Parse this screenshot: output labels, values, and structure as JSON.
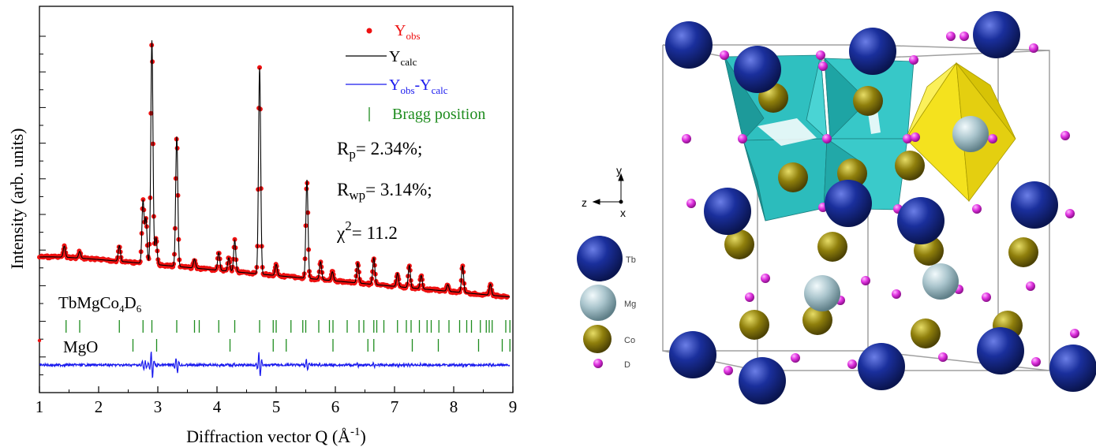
{
  "chart_data": {
    "type": "line",
    "title": "",
    "xlabel": "Diffraction vector Q (Å",
    "xlabel_sup": "-1",
    "xlabel_close": ")",
    "ylabel": "Intensity (arb. units)",
    "xlim": [
      1,
      9
    ],
    "x_ticks": [
      "1",
      "2",
      "3",
      "4",
      "5",
      "6",
      "7",
      "8",
      "9"
    ],
    "y_ticks": "unlabeled",
    "legend": [
      {
        "name": "Y",
        "sub": "obs",
        "color": "#ee1111",
        "kind": "marker"
      },
      {
        "name": "Y",
        "sub": "calc",
        "color": "#000000",
        "kind": "line"
      },
      {
        "name": "Y",
        "sub": "obs",
        "name2": "-Y",
        "sub2": "calc",
        "color": "#1a1aee",
        "kind": "line"
      },
      {
        "name": "Bragg position",
        "color": "#1e8c1e",
        "kind": "tick"
      }
    ],
    "annotations": {
      "rp_main": "R",
      "rp_sub": "p",
      "rp_value": "= 2.34%;",
      "rwp_main": "R",
      "rwp_sub": "wp",
      "rwp_value": "= 3.14%;",
      "chi_main": "χ",
      "chi_sup": "2",
      "chi_value": "= 11.2"
    },
    "phases": [
      {
        "label": "TbMgCo",
        "sub": "4",
        "label2": "D",
        "sub2": "6",
        "bragg": [
          1.45,
          1.68,
          2.35,
          2.75,
          2.9,
          3.32,
          3.62,
          3.7,
          4.03,
          4.3,
          4.72,
          4.95,
          5.0,
          5.25,
          5.45,
          5.5,
          5.72,
          5.9,
          5.96,
          6.2,
          6.4,
          6.48,
          6.65,
          6.7,
          6.82,
          7.05,
          7.2,
          7.28,
          7.42,
          7.55,
          7.62,
          7.75,
          7.92,
          8.1,
          8.22,
          8.3,
          8.45,
          8.55,
          8.6,
          8.65,
          8.88,
          8.95
        ]
      },
      {
        "label": "MgO",
        "bragg": [
          2.58,
          2.98,
          4.22,
          4.95,
          5.17,
          5.96,
          6.55,
          6.65,
          7.3,
          7.74,
          8.42,
          8.82,
          8.95
        ]
      }
    ],
    "peaks": [
      {
        "q": 1.42,
        "h": 0.05
      },
      {
        "q": 1.68,
        "h": 0.03
      },
      {
        "q": 2.35,
        "h": 0.07
      },
      {
        "q": 2.75,
        "h": 0.28
      },
      {
        "q": 2.8,
        "h": 0.2
      },
      {
        "q": 2.9,
        "h": 1.0
      },
      {
        "q": 2.97,
        "h": 0.12
      },
      {
        "q": 3.32,
        "h": 0.58
      },
      {
        "q": 3.62,
        "h": 0.04
      },
      {
        "q": 4.03,
        "h": 0.08
      },
      {
        "q": 4.2,
        "h": 0.06
      },
      {
        "q": 4.3,
        "h": 0.14
      },
      {
        "q": 4.72,
        "h": 0.92
      },
      {
        "q": 5.0,
        "h": 0.05
      },
      {
        "q": 5.52,
        "h": 0.44
      },
      {
        "q": 5.75,
        "h": 0.08
      },
      {
        "q": 5.95,
        "h": 0.04
      },
      {
        "q": 6.38,
        "h": 0.09
      },
      {
        "q": 6.65,
        "h": 0.12
      },
      {
        "q": 7.05,
        "h": 0.06
      },
      {
        "q": 7.25,
        "h": 0.1
      },
      {
        "q": 7.45,
        "h": 0.06
      },
      {
        "q": 7.9,
        "h": 0.03
      },
      {
        "q": 8.15,
        "h": 0.12
      },
      {
        "q": 8.62,
        "h": 0.05
      }
    ]
  },
  "structure": {
    "axes": {
      "y": "y",
      "z": "z",
      "x": "x"
    },
    "legend": [
      {
        "label": "Tb",
        "color": "#142a8c"
      },
      {
        "label": "Mg",
        "color": "#a8c4cc"
      },
      {
        "label": "Co",
        "color": "#8a7a08"
      },
      {
        "label": "D",
        "color": "#e030e0"
      }
    ],
    "colors": {
      "octahedron_cyan": "#2ec4c4",
      "octahedron_yellow": "#f2e01c",
      "cell_edge": "#a0a0a0"
    }
  }
}
